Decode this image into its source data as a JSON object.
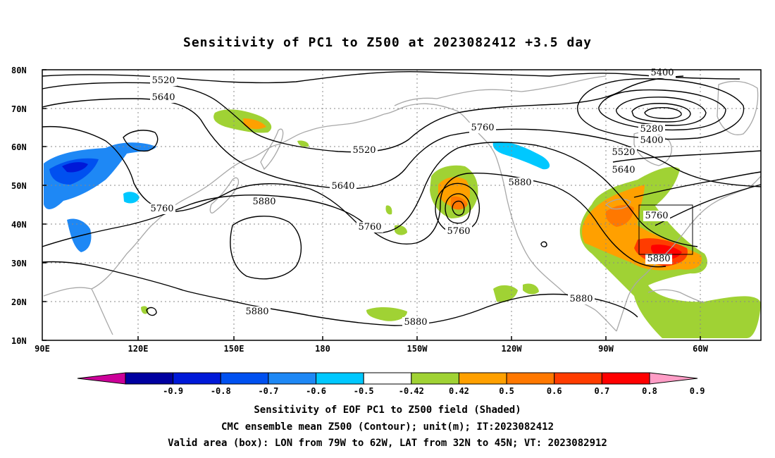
{
  "title": "Sensitivity of PC1 to Z500 at 2023082412 +3.5 day",
  "lat_labels": [
    "80N",
    "70N",
    "60N",
    "50N",
    "40N",
    "30N",
    "20N",
    "10N"
  ],
  "lon_labels": [
    "90E",
    "120E",
    "150E",
    "180",
    "150W",
    "120W",
    "90W",
    "60W"
  ],
  "contour_labels": [
    "5400",
    "5520",
    "5640",
    "5760",
    "5880",
    "5280"
  ],
  "contour_label_list": [
    {
      "text": "5400"
    },
    {
      "text": "5520"
    },
    {
      "text": "5640"
    },
    {
      "text": "5760"
    },
    {
      "text": "5520"
    },
    {
      "text": "5640"
    },
    {
      "text": "5880"
    },
    {
      "text": "5760"
    },
    {
      "text": "5760"
    },
    {
      "text": "5880"
    },
    {
      "text": "5280"
    },
    {
      "text": "5400"
    },
    {
      "text": "5520"
    },
    {
      "text": "5640"
    },
    {
      "text": "5760"
    },
    {
      "text": "5880"
    },
    {
      "text": "5880"
    },
    {
      "text": "5880"
    },
    {
      "text": "5760"
    },
    {
      "text": "5880"
    }
  ],
  "colorbar": {
    "labels": [
      "-0.9",
      "-0.8",
      "-0.7",
      "-0.6",
      "-0.5",
      "-0.42",
      "0.42",
      "0.5",
      "0.6",
      "0.7",
      "0.8",
      "0.9"
    ],
    "colors": [
      "#cc0099",
      "#0000a0",
      "#0019d8",
      "#0050f0",
      "#1e88f5",
      "#00c8ff",
      "#ffffff",
      "#a0d234",
      "#ffa000",
      "#ff7800",
      "#ff3c00",
      "#ff0000",
      "#ff9dc6"
    ]
  },
  "valid_box": {
    "lon_from": "79W",
    "lon_to": "62W",
    "lat_from": "32N",
    "lat_to": "45N"
  },
  "captions": {
    "line1": "Sensitivity of EOF PC1 to Z500 field (Shaded)",
    "line2": "CMC ensemble mean Z500 (Contour); unit(m); IT:2023082412",
    "line3": "Valid area (box): LON from 79W to 62W, LAT from 32N to 45N; VT: 2023082912"
  }
}
